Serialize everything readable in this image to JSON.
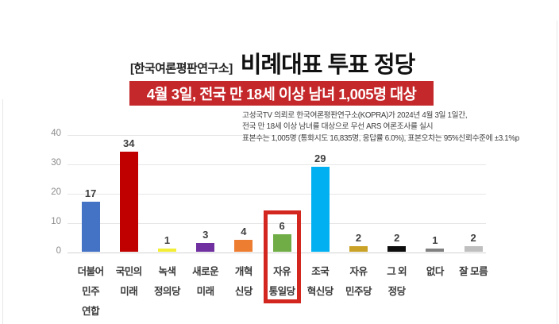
{
  "page": {
    "source_label": "[한국여론평판연구소]",
    "title": "비례대표 투표 정당",
    "banner_text": "4월 3일, 전국 만 18세 이상 남녀 1,005명 대상",
    "banner_color": "#c5282b",
    "methodology_lines": [
      "고성국TV 의뢰로 한국여론평판연구소(KOPRA)가 2024년 4월 3일 1일간,",
      "전국 만 18세 이상 남녀를 대상으로 무선 ARS 여론조사를 실시",
      "표본수는 1,005명 (통화시도 16,835명, 응답률 6.0%), 표본오차는 95%신뢰수준에 ±3.1%p"
    ]
  },
  "chart_data": {
    "type": "bar",
    "title": "비례대표 투표 정당",
    "categories": [
      "더불어\n민주\n연합",
      "국민의\n미래",
      "녹색\n정의당",
      "새로운\n미래",
      "개혁\n신당",
      "자유\n통일당",
      "조국\n혁신당",
      "자유\n민주당",
      "그 외\n정당",
      "없다",
      "잘 모름"
    ],
    "values": [
      17,
      34,
      1,
      3,
      4,
      6,
      29,
      2,
      2,
      1,
      2
    ],
    "bar_colors": [
      "#4472c4",
      "#c00000",
      "#f2ee35",
      "#7030a0",
      "#ed7d31",
      "#70ad47",
      "#00b0f0",
      "#c9a227",
      "#0d0d0d",
      "#808080",
      "#bfbfbf"
    ],
    "ylim": [
      0,
      40
    ],
    "yticks": [
      0,
      10,
      20,
      30,
      40
    ],
    "grid": true,
    "legend": false,
    "highlight": {
      "index": 5,
      "color": "#d2261e"
    }
  }
}
